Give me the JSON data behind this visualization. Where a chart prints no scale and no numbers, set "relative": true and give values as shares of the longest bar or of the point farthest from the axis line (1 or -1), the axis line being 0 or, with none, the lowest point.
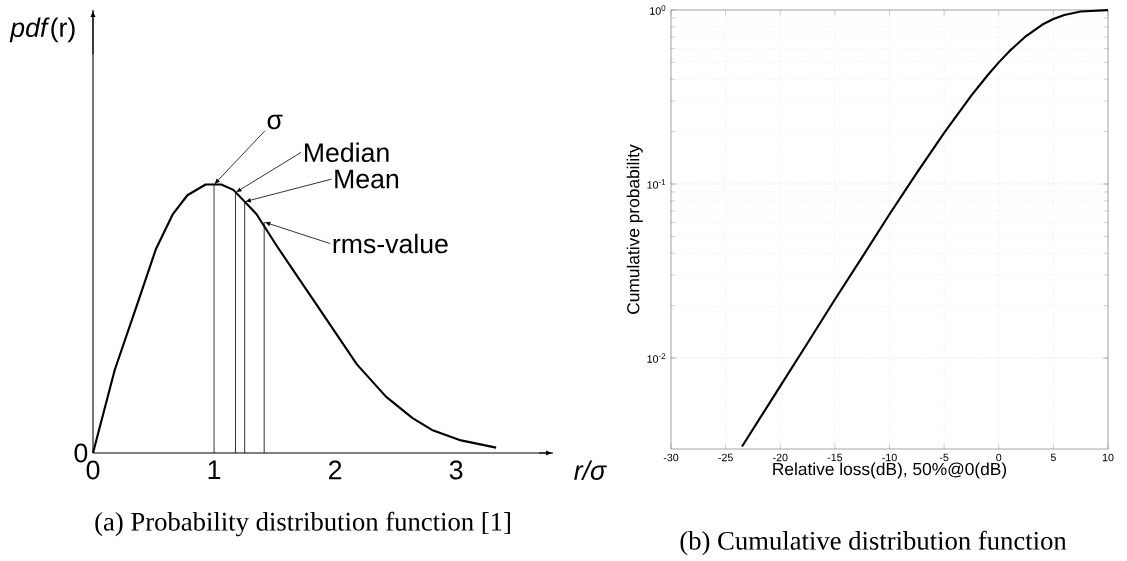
{
  "chart_data": [
    {
      "type": "line",
      "relative": true,
      "title": "(a) Probability distribution function [1]",
      "xlabel": "r/σ",
      "ylabel": "*pdf*(r)",
      "marker": "none",
      "color": "#000000",
      "x": [
        0,
        0.18,
        0.37,
        0.52,
        0.66,
        0.78,
        0.93,
        1.06,
        1.16,
        1.35,
        1.52,
        1.82,
        2.0,
        2.18,
        2.42,
        2.64,
        2.8,
        3.04,
        3.33
      ],
      "values": [
        0,
        0.31,
        0.56,
        0.76,
        0.89,
        0.96,
        1.0,
        1.0,
        0.98,
        0.89,
        0.77,
        0.57,
        0.45,
        0.33,
        0.21,
        0.13,
        0.086,
        0.047,
        0.02
      ],
      "xlim": [
        0,
        3.8
      ],
      "xticks": [
        0,
        1,
        2,
        3
      ],
      "annotations": [
        "0",
        {
          "text": "σ",
          "x": 1,
          "y": 1
        },
        {
          "text": "Median",
          "x": 1.177,
          "y": 0.97
        },
        {
          "text": "Mean",
          "x": 1.253,
          "y": 0.936
        },
        {
          "text": "rms-value",
          "x": 1.414,
          "y": 0.86
        }
      ]
    },
    {
      "type": "line",
      "title": "(b) Cumulative distribution function",
      "xlabel": "Relative loss(dB), 50%@0(dB)",
      "ylabel": "Cumulative probability",
      "marker": "none",
      "color": "#000000",
      "log": true,
      "grid": true,
      "x": [
        -23.5,
        -20,
        -17.5,
        -15,
        -12.5,
        -10,
        -7.5,
        -5,
        -2.5,
        -1,
        0,
        1,
        2.5,
        4,
        5,
        6,
        7.5,
        10
      ],
      "values": [
        0.0031,
        0.0069,
        0.0122,
        0.0217,
        0.038,
        0.067,
        0.116,
        0.197,
        0.323,
        0.423,
        0.5,
        0.582,
        0.709,
        0.825,
        0.888,
        0.937,
        0.98,
        0.999
      ],
      "xlim": [
        -30,
        10
      ],
      "xticks": [
        -30,
        -25,
        -20,
        -15,
        -10,
        -5,
        0,
        5,
        10
      ],
      "ylim": [
        0.003,
        1
      ],
      "yticks": [
        {
          "value": 0.01,
          "label": "10$^{-2}$"
        },
        {
          "value": 0.1,
          "label": "10$^{-1}$"
        },
        {
          "value": 1,
          "label": "10$^{0}$"
        }
      ]
    }
  ]
}
